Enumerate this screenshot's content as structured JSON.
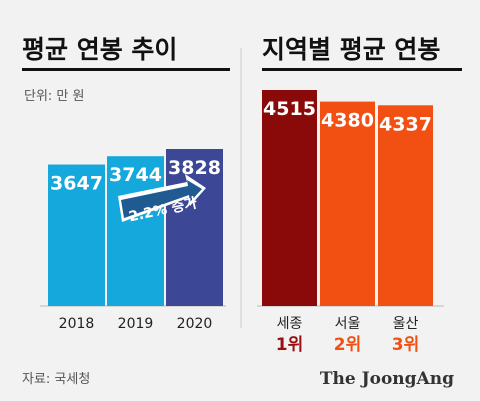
{
  "left_panel": {
    "title": "평균 연봉 추이",
    "unit": "단위: 만 원",
    "annotation": "2.2% 증가"
  },
  "right_panel": {
    "title": "지역별 평균 연봉"
  },
  "footer": {
    "source": "자료: 국세청",
    "brand": "The JoongAng"
  },
  "colors": {
    "background": "#f2f2f2",
    "left_bars": [
      "#14a8dc",
      "#14a8dc",
      "#3c4896"
    ],
    "right_bars": [
      "#8a0a0a",
      "#f25012",
      "#f25012"
    ],
    "rank_colors": [
      "#9a1010",
      "#f25012",
      "#f25012"
    ],
    "arrow": "#1f5b91"
  },
  "chart_data": [
    {
      "type": "bar",
      "title": "평균 연봉 추이",
      "unit": "단위: 만 원",
      "categories": [
        "2018",
        "2019",
        "2020"
      ],
      "values": [
        3647,
        3744,
        3828
      ],
      "annotation": "2.2% 증가"
    },
    {
      "type": "bar",
      "title": "지역별 평균 연봉",
      "categories": [
        "세종",
        "서울",
        "울산"
      ],
      "ranks": [
        "1위",
        "2위",
        "3위"
      ],
      "values": [
        4515,
        4380,
        4337
      ]
    }
  ]
}
